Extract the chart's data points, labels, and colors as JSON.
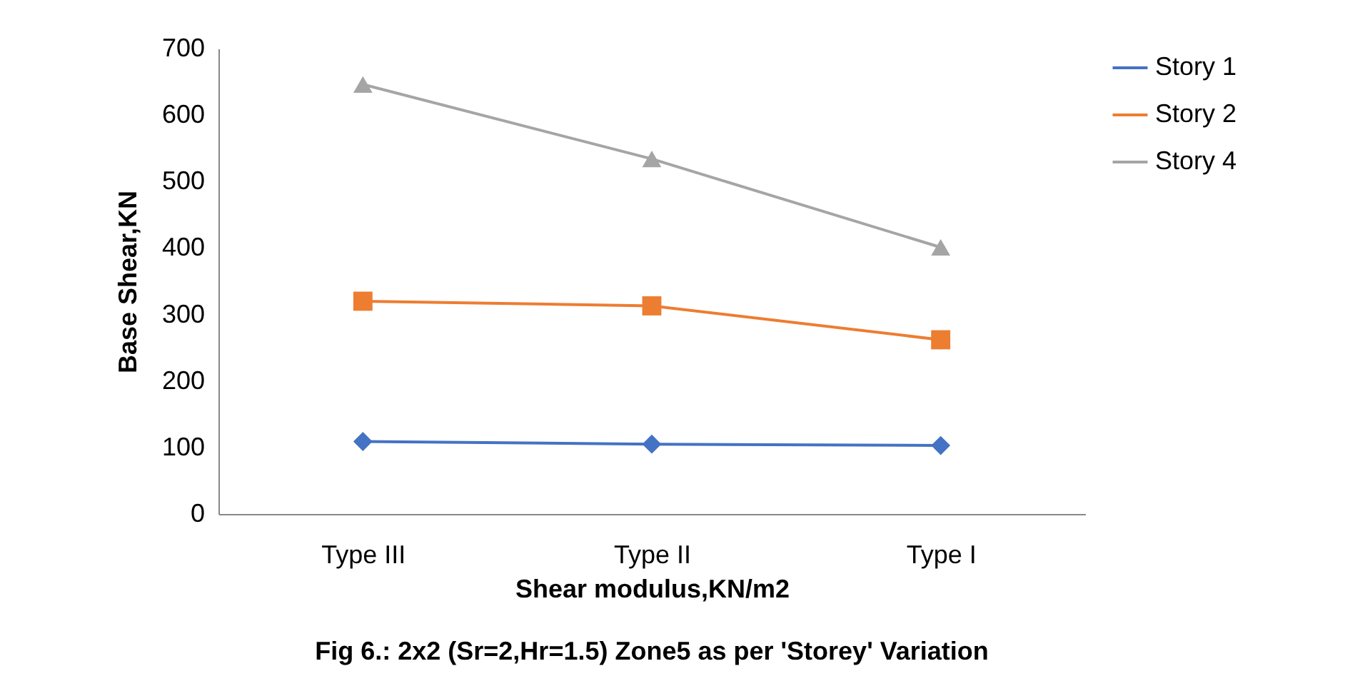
{
  "chart_data": {
    "type": "line",
    "title": "Fig 6.: 2x2 (Sr=2,Hr=1.5)  Zone5 as per 'Storey' Variation",
    "xlabel": "Shear modulus,KN/m2",
    "ylabel": "Base Shear,KN",
    "categories": [
      "Type III",
      "Type II",
      "Type I"
    ],
    "series": [
      {
        "name": "Story 1",
        "color": "#4472c4",
        "marker": "diamond",
        "values": [
          109,
          105,
          103
        ]
      },
      {
        "name": "Story 2",
        "color": "#ed7d31",
        "marker": "square",
        "values": [
          320,
          313,
          262
        ]
      },
      {
        "name": "Story 4",
        "color": "#a5a5a5",
        "marker": "triangle",
        "values": [
          646,
          534,
          401
        ]
      }
    ],
    "ylim": [
      0,
      700
    ],
    "yticks": [
      0,
      100,
      200,
      300,
      400,
      500,
      600,
      700
    ],
    "grid": false,
    "legend": "right"
  }
}
